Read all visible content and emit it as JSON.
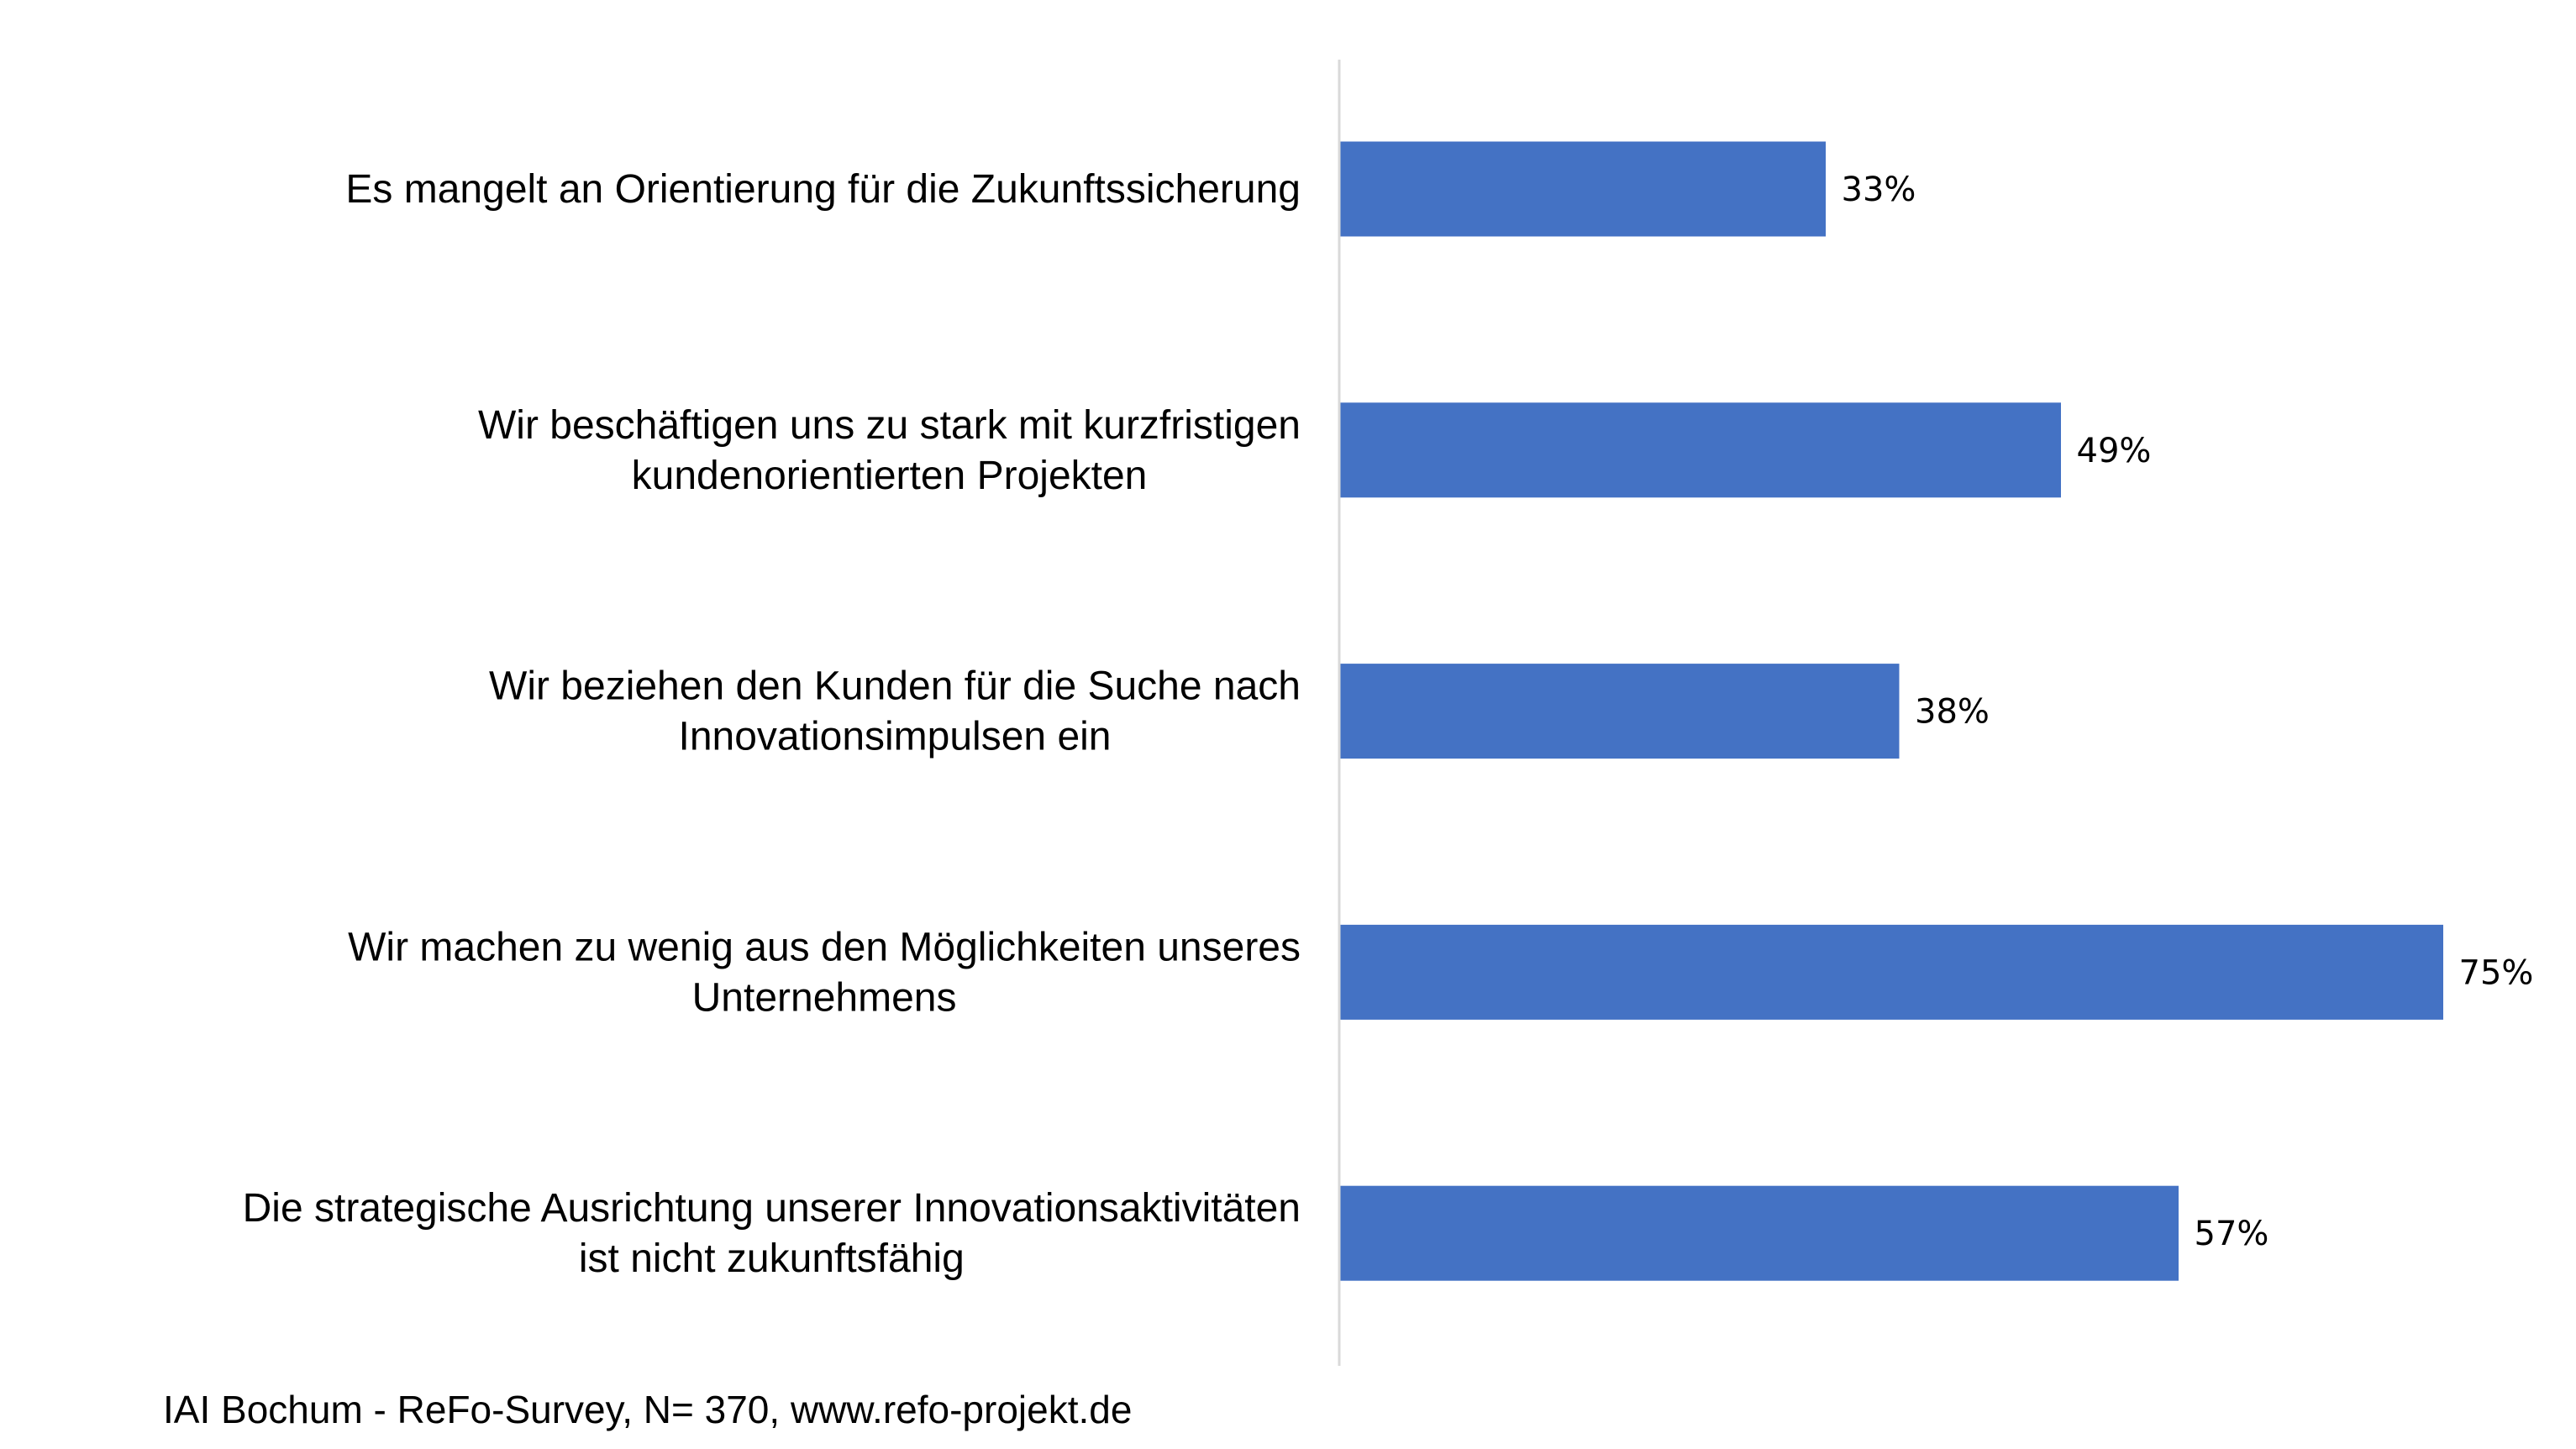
{
  "chart_data": {
    "type": "bar",
    "orientation": "horizontal",
    "title": "",
    "xlabel": "",
    "ylabel": "",
    "xlim": [
      0,
      80
    ],
    "grid": false,
    "categories": [
      [
        "Es mangelt an Orientierung für die Zukunftssicherung"
      ],
      [
        "Wir beschäftigen uns zu stark mit kurzfristigen",
        "kundenorientierten Projekten"
      ],
      [
        "Wir beziehen den Kunden für die Suche nach",
        "Innovationsimpulsen ein"
      ],
      [
        "Wir machen zu wenig aus den Möglichkeiten unseres",
        "Unternehmens"
      ],
      [
        "Die strategische Ausrichtung unserer Innovationsaktivitäten",
        "ist nicht zukunftsfähig"
      ]
    ],
    "values": [
      33,
      49,
      38,
      75,
      57
    ],
    "data_labels": [
      "33%",
      "49%",
      "38%",
      "75%",
      "57%"
    ],
    "bar_color": "#4472C4",
    "axis_color": "#D9D9D9"
  },
  "footer": "IAI Bochum - ReFo-Survey, N= 370, www.refo-projekt.de"
}
